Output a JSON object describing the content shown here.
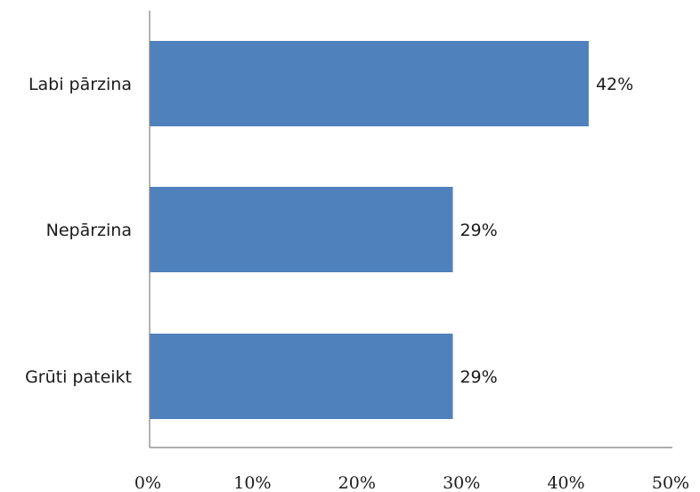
{
  "chart_data": {
    "type": "bar",
    "orientation": "horizontal",
    "categories": [
      "Labi pārzina",
      "Nepārzina",
      "Grūti pateikt"
    ],
    "values": [
      42,
      29,
      29
    ],
    "data_labels": [
      "42%",
      "29%",
      "29%"
    ],
    "xlim": [
      0,
      50
    ],
    "x_ticks": [
      0,
      10,
      20,
      30,
      40,
      50
    ],
    "x_tick_labels": [
      "0%",
      "10%",
      "20%",
      "30%",
      "40%",
      "50%"
    ],
    "grid": false,
    "legend": "none",
    "bar_color": "#4f81bd"
  }
}
